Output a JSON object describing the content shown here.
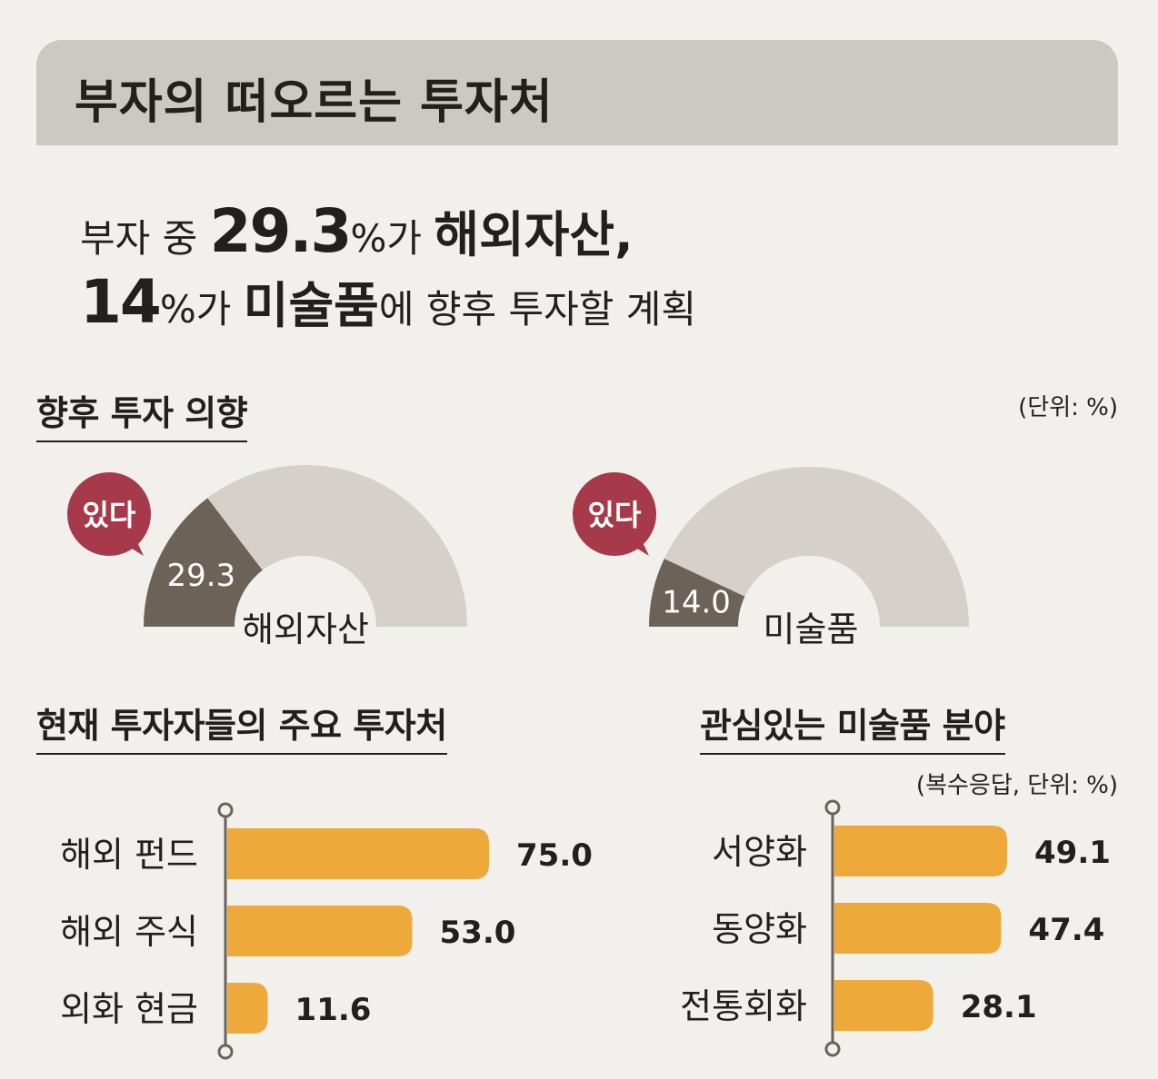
{
  "title": "부자의 떠오르는 투자처",
  "headline": {
    "line1_prefix": "부자 중 ",
    "line1_number": "29.3",
    "line1_pct": "%",
    "line1_mid": "가 ",
    "line1_bold": "해외자산",
    "line1_suffix": ",",
    "line2_number": "14",
    "line2_pct": "%",
    "line2_mid": "가 ",
    "line2_bold": "미술품",
    "line2_suffix": "에 향후 투자할 계획"
  },
  "sections": {
    "intent_title": "향후 투자 의향",
    "intent_unit": "(단위: %)",
    "current_title": "현재 투자자들의 주요 투자처",
    "art_title": "관심있는 미술품 분야",
    "art_unit": "(복수응답, 단위: %)"
  },
  "colors": {
    "bar": "#eea93b",
    "gauge_fill": "#6c6258",
    "gauge_track": "#d5d1ca",
    "badge": "#a63a4a",
    "axis": "#6b625b",
    "title_bar": "#ccc9c2"
  },
  "chart_data": [
    {
      "type": "pie",
      "title": "향후 투자 의향",
      "label": "해외자산",
      "badge": "있다",
      "value": 29.3,
      "value_label": "29.3",
      "range": [
        0,
        100
      ]
    },
    {
      "type": "pie",
      "title": "향후 투자 의향",
      "label": "미술품",
      "badge": "있다",
      "value": 14.0,
      "value_label": "14.0",
      "range": [
        0,
        100
      ]
    },
    {
      "type": "bar",
      "orientation": "horizontal",
      "title": "현재 투자자들의 주요 투자처",
      "categories": [
        "해외 펀드",
        "해외 주식",
        "외화 현금"
      ],
      "values": [
        75.0,
        53.0,
        11.6
      ],
      "value_labels": [
        "75.0",
        "53.0",
        "11.6"
      ],
      "xlim": [
        0,
        80
      ]
    },
    {
      "type": "bar",
      "orientation": "horizontal",
      "title": "관심있는 미술품 분야",
      "subtitle": "(복수응답, 단위: %)",
      "categories": [
        "서양화",
        "동양화",
        "전통회화"
      ],
      "values": [
        49.1,
        47.4,
        28.1
      ],
      "value_labels": [
        "49.1",
        "47.4",
        "28.1"
      ],
      "xlim": [
        0,
        55
      ]
    }
  ]
}
